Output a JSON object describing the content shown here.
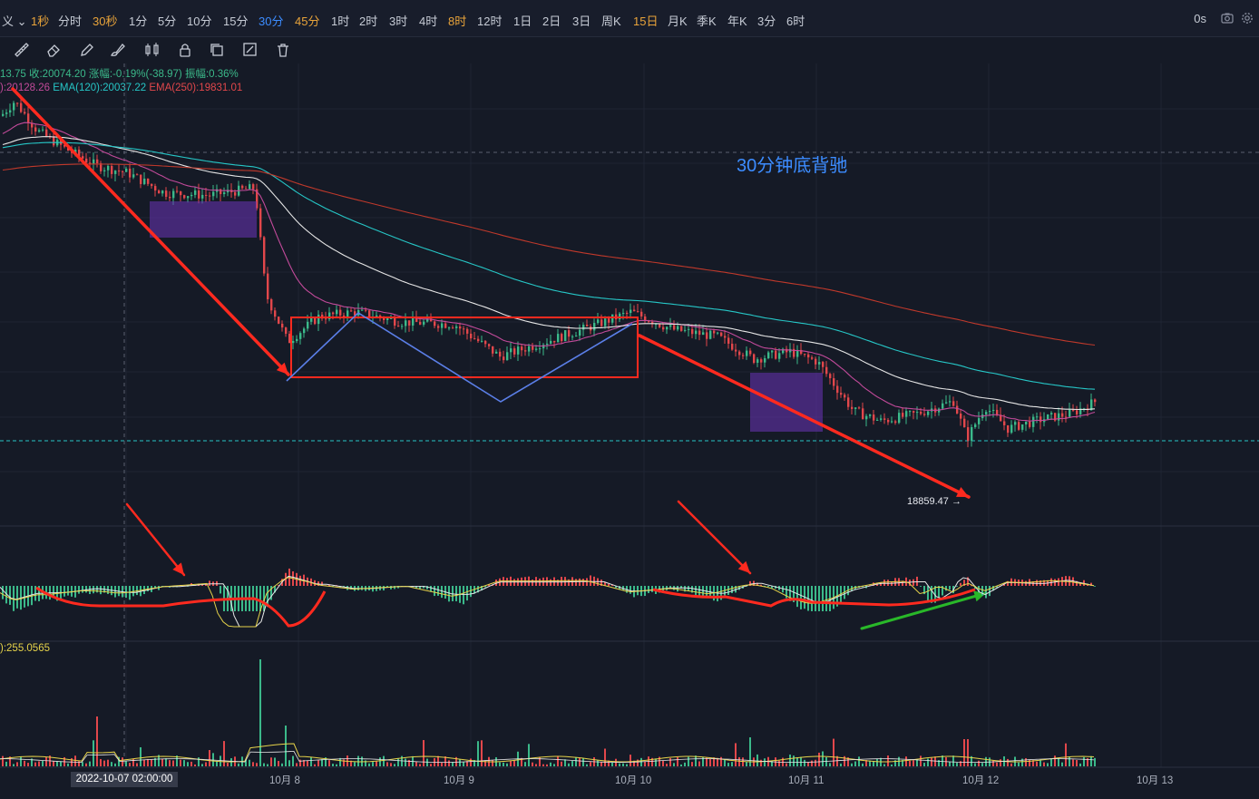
{
  "topbar": {
    "partial_label": "义",
    "intervals": [
      {
        "label": "1秒",
        "style": "orange"
      },
      {
        "label": "分时",
        "style": "normal"
      },
      {
        "label": "30秒",
        "style": "orange"
      },
      {
        "label": "1分",
        "style": "normal"
      },
      {
        "label": "5分",
        "style": "normal"
      },
      {
        "label": "10分",
        "style": "normal"
      },
      {
        "label": "15分",
        "style": "normal"
      },
      {
        "label": "30分",
        "style": "active"
      },
      {
        "label": "45分",
        "style": "orange"
      },
      {
        "label": "1时",
        "style": "normal"
      },
      {
        "label": "2时",
        "style": "normal"
      },
      {
        "label": "3时",
        "style": "normal"
      },
      {
        "label": "4时",
        "style": "normal"
      },
      {
        "label": "8时",
        "style": "orange"
      },
      {
        "label": "12时",
        "style": "normal"
      },
      {
        "label": "1日",
        "style": "normal"
      },
      {
        "label": "2日",
        "style": "normal"
      },
      {
        "label": "3日",
        "style": "normal"
      },
      {
        "label": "周K",
        "style": "normal"
      },
      {
        "label": "15日",
        "style": "orange"
      },
      {
        "label": "月K",
        "style": "normal"
      },
      {
        "label": "季K",
        "style": "normal"
      },
      {
        "label": "年K",
        "style": "normal"
      },
      {
        "label": "3分",
        "style": "normal"
      },
      {
        "label": "6时",
        "style": "normal"
      }
    ],
    "latency": "0s"
  },
  "info": {
    "open_partial": "13.75",
    "close": "收:20074.20",
    "change": "涨幅:-0.19%(-38.97)",
    "amplitude": "振幅:0.36%",
    "ema_partial": "):20128.26",
    "ema120": "EMA(120):20037.22",
    "ema250": "EMA(250):19831.01"
  },
  "annotation": "30分钟底背驰",
  "low_price_label": "18859.47",
  "volume_label": "):255.0565",
  "cursor_date": "2022-10-07 02:00:00",
  "x_ticks": [
    "10月 8",
    "10月 9",
    "10月 10",
    "10月 11",
    "10月 12",
    "10月 13"
  ],
  "colors": {
    "background": "#151a26",
    "up": "#3bb98a",
    "down": "#e2474b",
    "active": "#3c8cff",
    "ema_white": "#e6e6e6",
    "ema_teal": "#26c6c6",
    "ema_red": "#c0392b",
    "ema_pink": "#c24a9a",
    "annotation_red": "#ff2a1f",
    "annotation_blue": "#5b7fe8",
    "annotation_green": "#29b829",
    "zone_purple": "#6b35b8"
  },
  "chart_data": {
    "type": "line",
    "symbol_price_close": 20074.2,
    "ema120": 20037.22,
    "ema250": 19831.01,
    "ema_other": 20128.26,
    "low": 18859.47,
    "x": [
      "10月 8",
      "10月 9",
      "10月 10",
      "10月 11",
      "10月 12",
      "10月 13"
    ],
    "price_path": [
      {
        "t": "10月 7",
        "v": 20420
      },
      {
        "t": "10月 7",
        "v": 20330
      },
      {
        "t": "10月 7",
        "v": 20250
      },
      {
        "t": "10月 7",
        "v": 20180
      },
      {
        "t": "10月 8",
        "v": 19480
      },
      {
        "t": "10月 8",
        "v": 19600
      },
      {
        "t": "10月 9",
        "v": 19470
      },
      {
        "t": "10月 9",
        "v": 19520
      },
      {
        "t": "10月 10",
        "v": 19560
      },
      {
        "t": "10月 10",
        "v": 19380
      },
      {
        "t": "10月 11",
        "v": 19200
      },
      {
        "t": "10月 11",
        "v": 19000
      },
      {
        "t": "10月 12",
        "v": 18860
      },
      {
        "t": "10月 12",
        "v": 18980
      },
      {
        "t": "10月 12",
        "v": 19060
      }
    ]
  }
}
